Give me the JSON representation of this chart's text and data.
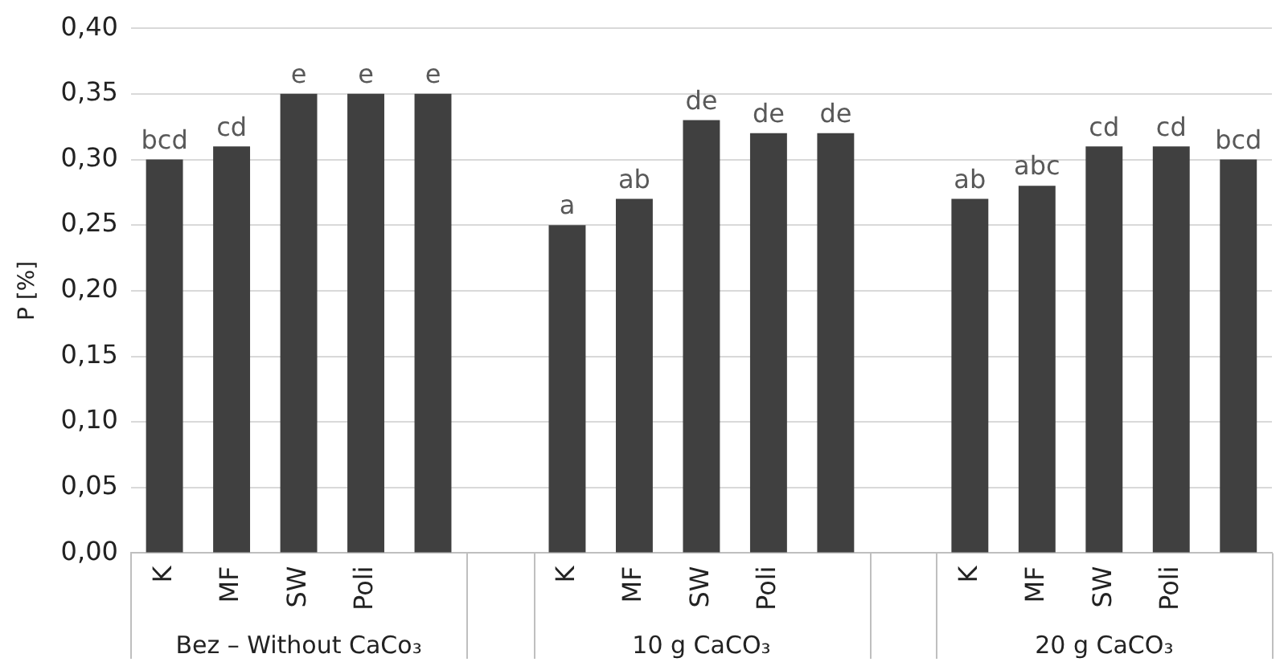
{
  "chart_data": {
    "type": "bar",
    "ylabel": "P [%]",
    "categories": [
      "K",
      "MF",
      "SW",
      "Poli",
      null,
      null,
      "K",
      "MF",
      "SW",
      "Poli",
      null,
      null,
      "K",
      "MF",
      "SW",
      "Poli",
      null
    ],
    "series": [
      {
        "color": "#404040",
        "values": [
          0.3,
          0.31,
          0.35,
          0.35,
          0.35,
          null,
          0.25,
          0.27,
          0.33,
          0.32,
          0.32,
          null,
          0.27,
          0.28,
          0.31,
          0.31,
          0.3
        ],
        "value_labels": [
          "bcd",
          "cd",
          "e",
          "e",
          "e",
          null,
          "a",
          "ab",
          "de",
          "de",
          "de",
          null,
          "ab",
          "abc",
          "cd",
          "cd",
          "bcd"
        ]
      }
    ],
    "ylim": [
      0,
      0.4
    ],
    "yticks": [
      {
        "value": 0,
        "label": "0,00"
      },
      {
        "value": 0.05,
        "label": "0,05"
      },
      {
        "value": 0.1,
        "label": "0,10"
      },
      {
        "value": 0.15,
        "label": "0,15"
      },
      {
        "value": 0.2,
        "label": "0,20"
      },
      {
        "value": 0.25,
        "label": "0,25"
      },
      {
        "value": 0.3,
        "label": "0,30"
      },
      {
        "value": 0.35,
        "label": "0,35"
      },
      {
        "value": 0.4,
        "label": "0,40"
      }
    ],
    "grid": "y",
    "legend": false,
    "annotations": [
      "Bez – Without CaCo₃",
      "10 g CaCO₃",
      "20 g CaCO₃"
    ]
  }
}
